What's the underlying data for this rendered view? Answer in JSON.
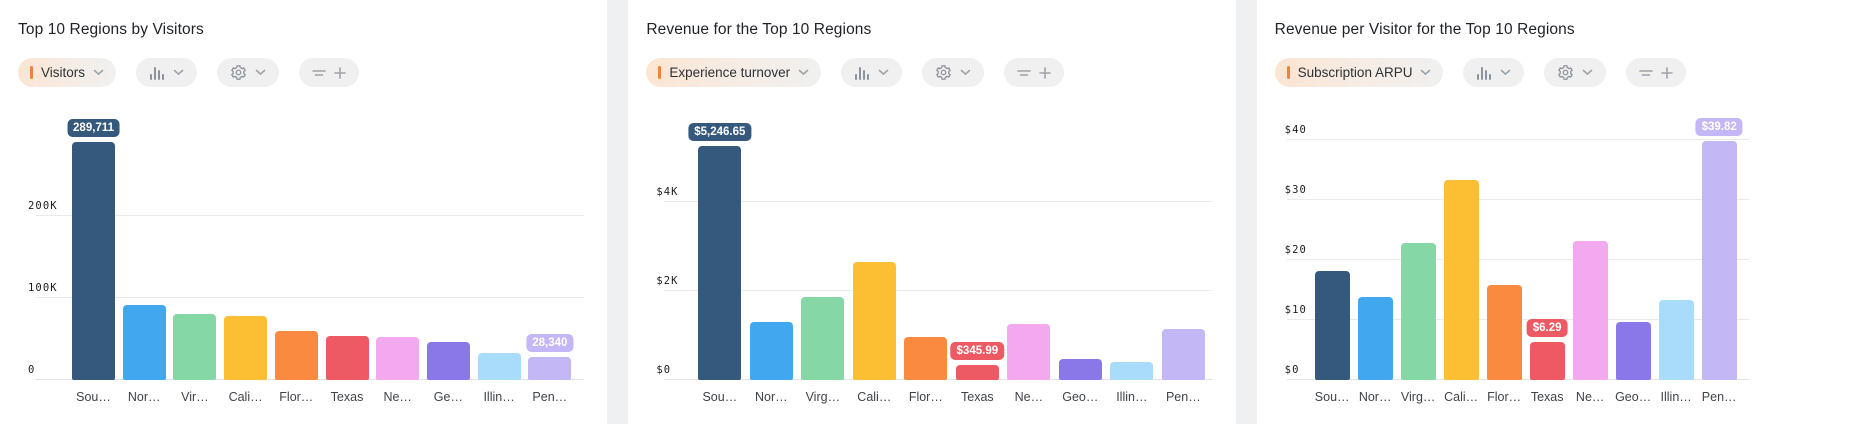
{
  "page": {
    "background": "#eef0f1",
    "card_background": "#ffffff"
  },
  "icons": {
    "metric_marker": "orange-bar",
    "metric_dropdown": "chevron-down",
    "chart_type": "column-chart",
    "settings": "gear",
    "filter": "filter",
    "add": "plus"
  },
  "bar_palette": [
    "#35597d",
    "#41a7ee",
    "#85d7a5",
    "#fcbe33",
    "#f98a40",
    "#ee5a64",
    "#f2a9f0",
    "#8b78e8",
    "#a8dcfa",
    "#c3b7f5"
  ],
  "chart_data": [
    {
      "type": "bar",
      "title": "Top 10 Regions by Visitors",
      "metric_label": "Visitors",
      "categories": [
        "Sou…",
        "Nor…",
        "Vir…",
        "Cali…",
        "Flor…",
        "Texas",
        "Ne…",
        "Ge…",
        "Illin…",
        "Pen…"
      ],
      "values": [
        289711,
        91500,
        80700,
        77500,
        59800,
        53700,
        51800,
        46400,
        32400,
        28340
      ],
      "y_ticks": [
        {
          "label": "200K",
          "value": 200000
        },
        {
          "label": "100K",
          "value": 100000
        },
        {
          "label": "0",
          "value": 0
        }
      ],
      "ylim": [
        0,
        341000
      ],
      "grid": true,
      "badges": [
        {
          "index": 0,
          "label": "289,711",
          "color": "#35597d"
        },
        {
          "index": 9,
          "label": "28,340",
          "color": "#c3b7f5"
        }
      ]
    },
    {
      "type": "bar",
      "title": "Revenue for the Top 10 Regions",
      "metric_label": "Experience turnover",
      "categories": [
        "Sou…",
        "Nor…",
        "Virg…",
        "Cali…",
        "Flor…",
        "Texas",
        "Ne…",
        "Geo…",
        "Illin…",
        "Pen…"
      ],
      "values": [
        5246.65,
        1300,
        1870,
        2650,
        970,
        345.99,
        1250,
        470,
        410,
        1140
      ],
      "y_ticks": [
        {
          "label": "$4K",
          "value": 4000
        },
        {
          "label": "$2K",
          "value": 2000
        },
        {
          "label": "$0",
          "value": 0
        }
      ],
      "ylim": [
        0,
        6290
      ],
      "grid": true,
      "badges": [
        {
          "index": 0,
          "label": "$5,246.65",
          "color": "#35597d"
        },
        {
          "index": 5,
          "label": "$345.99",
          "color": "#ee5a64"
        }
      ]
    },
    {
      "type": "bar",
      "title": "Revenue per Visitor for the Top 10 Regions",
      "metric_label": "Subscription ARPU",
      "categories": [
        "Sou…",
        "Nor…",
        "Virg…",
        "Cali…",
        "Flor…",
        "Texas",
        "Ne…",
        "Geo…",
        "Illin…",
        "Pen…"
      ],
      "values": [
        18.2,
        13.8,
        22.8,
        33.3,
        15.8,
        6.29,
        23.2,
        9.7,
        13.4,
        39.82
      ],
      "y_ticks": [
        {
          "label": "$40",
          "value": 40
        },
        {
          "label": "$30",
          "value": 30
        },
        {
          "label": "$20",
          "value": 20
        },
        {
          "label": "$10",
          "value": 10
        },
        {
          "label": "$0",
          "value": 0
        }
      ],
      "ylim": [
        0,
        46.7
      ],
      "grid": true,
      "badges": [
        {
          "index": 5,
          "label": "$6.29",
          "color": "#ee5a64"
        },
        {
          "index": 9,
          "label": "$39.82",
          "color": "#c3b7f5"
        }
      ]
    }
  ]
}
